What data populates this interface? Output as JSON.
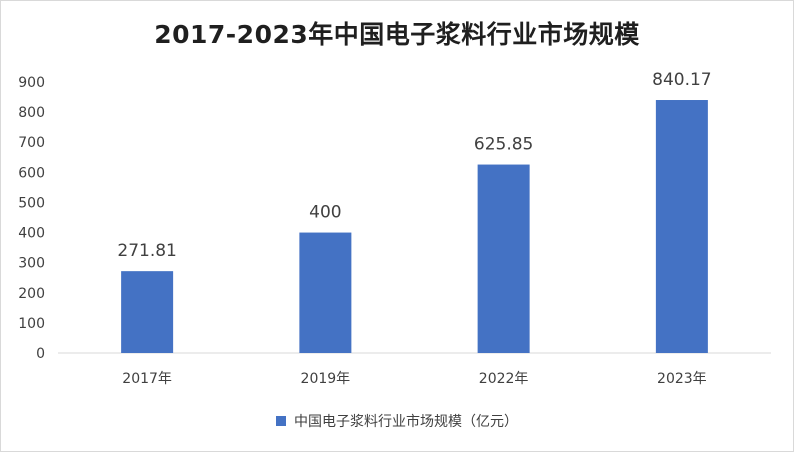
{
  "chart_data": {
    "type": "bar",
    "title": "2017-2023年中国电子浆料行业市场规模",
    "categories": [
      "2017年",
      "2019年",
      "2022年",
      "2023年"
    ],
    "series": [
      {
        "name": "中国电子浆料行业市场规模（亿元）",
        "values": [
          271.81,
          400,
          625.85,
          840.17
        ],
        "labels": [
          "271.81",
          "400",
          "625.85",
          "840.17"
        ],
        "color": "#4472C4"
      }
    ],
    "ylim": [
      0,
      900
    ],
    "yticks": [
      0,
      100,
      200,
      300,
      400,
      500,
      600,
      700,
      800,
      900
    ],
    "grid": false,
    "legend": "bottom"
  }
}
